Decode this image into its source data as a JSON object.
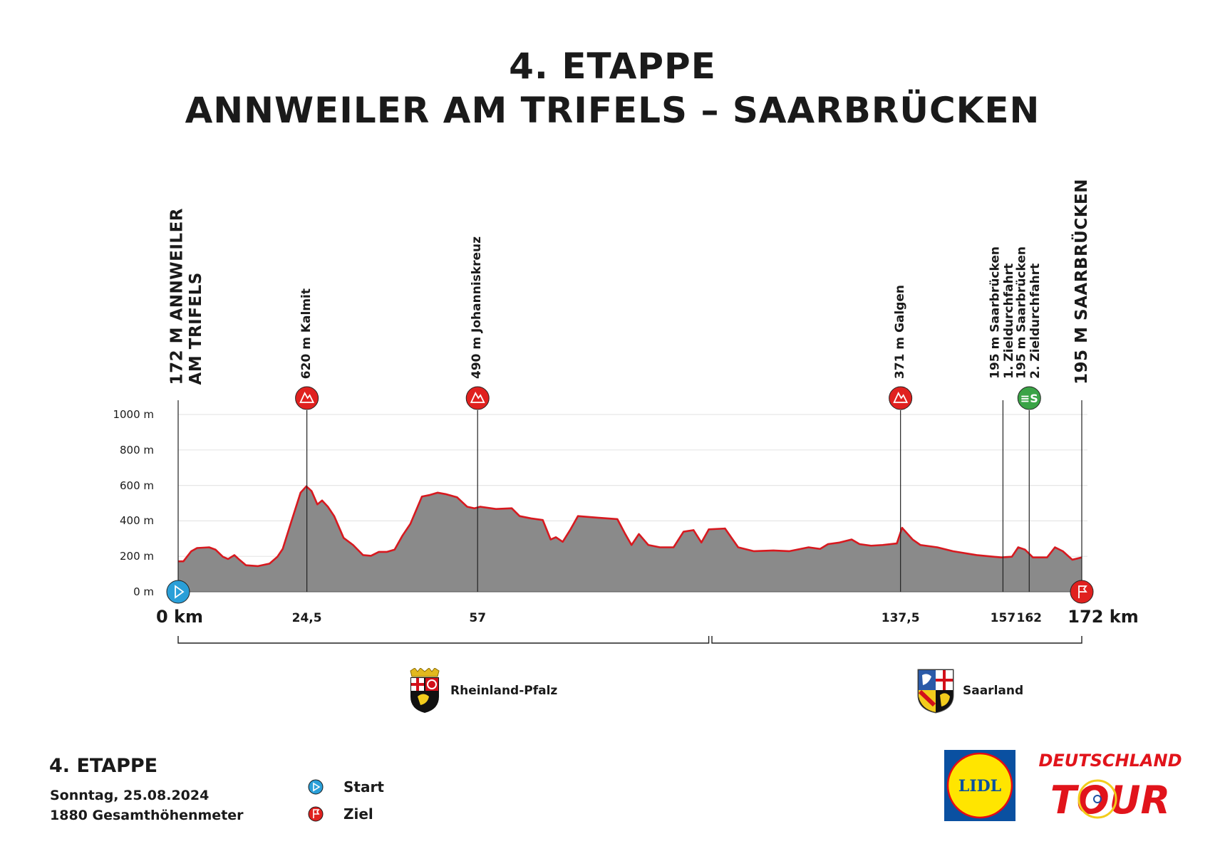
{
  "title": {
    "line1": "4. ETAPPE",
    "line2": "ANNWEILER AM TRIFELS – SAARBRÜCKEN"
  },
  "colors": {
    "profile_fill": "#8a8a8a",
    "profile_line": "#d7191f",
    "climb": "#e0211f",
    "sprint": "#3aa346",
    "start": "#2a9fd8",
    "finish": "#e0211f",
    "grid": "#e6e6e6"
  },
  "markers": [
    {
      "km": 0,
      "lines": [
        "172 M ANNWEILER",
        "AM TRIFELS"
      ],
      "style": "big",
      "icon": "start-icon"
    },
    {
      "km": 24.5,
      "lines": [
        "620 m Kalmit"
      ],
      "style": "small",
      "icon": "mountain-icon"
    },
    {
      "km": 57,
      "lines": [
        "490 m Johanniskreuz"
      ],
      "style": "small",
      "icon": "mountain-icon"
    },
    {
      "km": 137.5,
      "lines": [
        "371 m Galgen"
      ],
      "style": "small",
      "icon": "mountain-icon"
    },
    {
      "km": 157,
      "lines": [
        "195 m Saarbrücken",
        "1. Zieldurchfahrt"
      ],
      "style": "small",
      "icon": ""
    },
    {
      "km": 162,
      "lines": [
        "195 m Saarbrücken",
        "2. Zieldurchfahrt"
      ],
      "style": "small",
      "icon": "sprint-icon"
    },
    {
      "km": 172,
      "lines": [
        "195 M SAARBRÜCKEN"
      ],
      "style": "big",
      "icon": "finish-icon"
    }
  ],
  "km_labels": [
    {
      "km": 0,
      "text": "0 km",
      "big": true
    },
    {
      "km": 24.5,
      "text": "24,5"
    },
    {
      "km": 57,
      "text": "57"
    },
    {
      "km": 137.5,
      "text": "137,5"
    },
    {
      "km": 157,
      "text": "157"
    },
    {
      "km": 162,
      "text": "162"
    },
    {
      "km": 172,
      "text": "172 km",
      "big": true
    }
  ],
  "regions": [
    {
      "name": "Rheinland-Pfalz",
      "from_km": 0,
      "to_km": 101
    },
    {
      "name": "Saarland",
      "from_km": 101.6,
      "to_km": 172
    }
  ],
  "info": {
    "stage": "4. ETAPPE",
    "date": "Sonntag, 25.08.2024",
    "elevation_gain": "1880 Gesamthöhenmeter"
  },
  "legend": {
    "start": "Start",
    "finish": "Ziel"
  },
  "sponsors": {
    "lidl": "LIDL",
    "tour_top": "DEUTSCHLAND",
    "tour_bottom": "TOUR"
  },
  "chart_data": {
    "type": "area",
    "title": "4. ETAPPE ANNWEILER AM TRIFELS – SAARBRÜCKEN",
    "xlabel": "km",
    "ylabel": "m",
    "xlim": [
      0,
      172
    ],
    "ylim": [
      0,
      1000
    ],
    "yticks": [
      0,
      200,
      400,
      600,
      800,
      1000
    ],
    "ytick_labels": [
      "0 m",
      "200 m",
      "400 m",
      "600 m",
      "800 m",
      "1000 m"
    ],
    "grid": true,
    "x": [
      0,
      1,
      2.5,
      3.6,
      5.9,
      7.1,
      8.5,
      9.5,
      10.7,
      11.7,
      12.9,
      15.2,
      17.4,
      18.9,
      19.9,
      21.4,
      23.3,
      24.4,
      25.4,
      26.5,
      27.4,
      28.5,
      29.7,
      31.5,
      33.3,
      35.2,
      36.7,
      38.2,
      39.7,
      41.2,
      42.7,
      44.2,
      46.4,
      47.9,
      49.4,
      50.9,
      53.1,
      55,
      56.4,
      57.5,
      60.5,
      63.5,
      65,
      67.2,
      69.4,
      70.9,
      71.9,
      73.2,
      74.6,
      76.1,
      79.9,
      83.6,
      85.1,
      86.3,
      87.7,
      89.5,
      91.7,
      94.3,
      96.2,
      98.1,
      99.6,
      101,
      104.1,
      106.6,
      109.6,
      113.3,
      116.3,
      120,
      122.2,
      123.7,
      125.9,
      128.2,
      129.7,
      131.9,
      134.1,
      136.8,
      137.8,
      139.8,
      141.3,
      144.5,
      147.5,
      152,
      156.7,
      158.7,
      159.9,
      161.2,
      162.7,
      165.4,
      166.9,
      168.4,
      170.2,
      172
    ],
    "y": [
      172,
      172,
      229,
      247,
      251,
      238,
      198,
      185,
      207,
      180,
      150,
      145,
      159,
      198,
      242,
      383,
      559,
      595,
      568,
      493,
      515,
      480,
      427,
      304,
      264,
      207,
      203,
      225,
      225,
      238,
      317,
      383,
      537,
      546,
      559,
      551,
      533,
      480,
      471,
      480,
      467,
      471,
      427,
      414,
      405,
      295,
      308,
      282,
      348,
      427,
      418,
      410,
      326,
      264,
      326,
      264,
      251,
      251,
      339,
      348,
      278,
      352,
      357,
      251,
      229,
      233,
      229,
      251,
      242,
      269,
      278,
      295,
      269,
      260,
      264,
      273,
      361,
      295,
      264,
      251,
      229,
      207,
      194,
      198,
      251,
      238,
      194,
      194,
      251,
      229,
      181,
      194
    ]
  }
}
